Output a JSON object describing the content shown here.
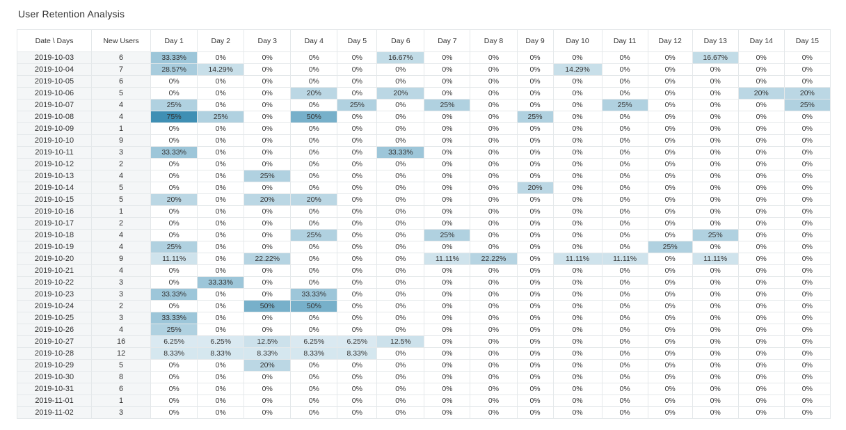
{
  "chart_data": {
    "type": "table",
    "title": "User Retention Analysis",
    "columns": [
      "Date \\ Days",
      "New Users",
      "Day 1",
      "Day 2",
      "Day 3",
      "Day 4",
      "Day 5",
      "Day 6",
      "Day 7",
      "Day 8",
      "Day 9",
      "Day 10",
      "Day 11",
      "Day 12",
      "Day 13",
      "Day 14",
      "Day 15"
    ],
    "rows": [
      {
        "date": "2019-10-03",
        "users": "6",
        "values": [
          "33.33%",
          "0%",
          "0%",
          "0%",
          "0%",
          "16.67%",
          "0%",
          "0%",
          "0%",
          "0%",
          "0%",
          "0%",
          "16.67%",
          "0%",
          "0%"
        ]
      },
      {
        "date": "2019-10-04",
        "users": "7",
        "values": [
          "28.57%",
          "14.29%",
          "0%",
          "0%",
          "0%",
          "0%",
          "0%",
          "0%",
          "0%",
          "14.29%",
          "0%",
          "0%",
          "0%",
          "0%",
          "0%"
        ]
      },
      {
        "date": "2019-10-05",
        "users": "6",
        "values": [
          "0%",
          "0%",
          "0%",
          "0%",
          "0%",
          "0%",
          "0%",
          "0%",
          "0%",
          "0%",
          "0%",
          "0%",
          "0%",
          "0%",
          "0%"
        ]
      },
      {
        "date": "2019-10-06",
        "users": "5",
        "values": [
          "0%",
          "0%",
          "0%",
          "20%",
          "0%",
          "20%",
          "0%",
          "0%",
          "0%",
          "0%",
          "0%",
          "0%",
          "0%",
          "20%",
          "20%"
        ]
      },
      {
        "date": "2019-10-07",
        "users": "4",
        "values": [
          "25%",
          "0%",
          "0%",
          "0%",
          "25%",
          "0%",
          "25%",
          "0%",
          "0%",
          "0%",
          "25%",
          "0%",
          "0%",
          "0%",
          "25%"
        ]
      },
      {
        "date": "2019-10-08",
        "users": "4",
        "values": [
          "75%",
          "25%",
          "0%",
          "50%",
          "0%",
          "0%",
          "0%",
          "0%",
          "25%",
          "0%",
          "0%",
          "0%",
          "0%",
          "0%",
          "0%"
        ]
      },
      {
        "date": "2019-10-09",
        "users": "1",
        "values": [
          "0%",
          "0%",
          "0%",
          "0%",
          "0%",
          "0%",
          "0%",
          "0%",
          "0%",
          "0%",
          "0%",
          "0%",
          "0%",
          "0%",
          "0%"
        ]
      },
      {
        "date": "2019-10-10",
        "users": "9",
        "values": [
          "0%",
          "0%",
          "0%",
          "0%",
          "0%",
          "0%",
          "0%",
          "0%",
          "0%",
          "0%",
          "0%",
          "0%",
          "0%",
          "0%",
          "0%"
        ]
      },
      {
        "date": "2019-10-11",
        "users": "3",
        "values": [
          "33.33%",
          "0%",
          "0%",
          "0%",
          "0%",
          "33.33%",
          "0%",
          "0%",
          "0%",
          "0%",
          "0%",
          "0%",
          "0%",
          "0%",
          "0%"
        ]
      },
      {
        "date": "2019-10-12",
        "users": "2",
        "values": [
          "0%",
          "0%",
          "0%",
          "0%",
          "0%",
          "0%",
          "0%",
          "0%",
          "0%",
          "0%",
          "0%",
          "0%",
          "0%",
          "0%",
          "0%"
        ]
      },
      {
        "date": "2019-10-13",
        "users": "4",
        "values": [
          "0%",
          "0%",
          "25%",
          "0%",
          "0%",
          "0%",
          "0%",
          "0%",
          "0%",
          "0%",
          "0%",
          "0%",
          "0%",
          "0%",
          "0%"
        ]
      },
      {
        "date": "2019-10-14",
        "users": "5",
        "values": [
          "0%",
          "0%",
          "0%",
          "0%",
          "0%",
          "0%",
          "0%",
          "0%",
          "20%",
          "0%",
          "0%",
          "0%",
          "0%",
          "0%",
          "0%"
        ]
      },
      {
        "date": "2019-10-15",
        "users": "5",
        "values": [
          "20%",
          "0%",
          "20%",
          "20%",
          "0%",
          "0%",
          "0%",
          "0%",
          "0%",
          "0%",
          "0%",
          "0%",
          "0%",
          "0%",
          "0%"
        ]
      },
      {
        "date": "2019-10-16",
        "users": "1",
        "values": [
          "0%",
          "0%",
          "0%",
          "0%",
          "0%",
          "0%",
          "0%",
          "0%",
          "0%",
          "0%",
          "0%",
          "0%",
          "0%",
          "0%",
          "0%"
        ]
      },
      {
        "date": "2019-10-17",
        "users": "2",
        "values": [
          "0%",
          "0%",
          "0%",
          "0%",
          "0%",
          "0%",
          "0%",
          "0%",
          "0%",
          "0%",
          "0%",
          "0%",
          "0%",
          "0%",
          "0%"
        ]
      },
      {
        "date": "2019-10-18",
        "users": "4",
        "values": [
          "0%",
          "0%",
          "0%",
          "25%",
          "0%",
          "0%",
          "25%",
          "0%",
          "0%",
          "0%",
          "0%",
          "0%",
          "25%",
          "0%",
          "0%"
        ]
      },
      {
        "date": "2019-10-19",
        "users": "4",
        "values": [
          "25%",
          "0%",
          "0%",
          "0%",
          "0%",
          "0%",
          "0%",
          "0%",
          "0%",
          "0%",
          "0%",
          "25%",
          "0%",
          "0%",
          "0%"
        ]
      },
      {
        "date": "2019-10-20",
        "users": "9",
        "values": [
          "11.11%",
          "0%",
          "22.22%",
          "0%",
          "0%",
          "0%",
          "11.11%",
          "22.22%",
          "0%",
          "11.11%",
          "11.11%",
          "0%",
          "11.11%",
          "0%",
          "0%"
        ]
      },
      {
        "date": "2019-10-21",
        "users": "4",
        "values": [
          "0%",
          "0%",
          "0%",
          "0%",
          "0%",
          "0%",
          "0%",
          "0%",
          "0%",
          "0%",
          "0%",
          "0%",
          "0%",
          "0%",
          "0%"
        ]
      },
      {
        "date": "2019-10-22",
        "users": "3",
        "values": [
          "0%",
          "33.33%",
          "0%",
          "0%",
          "0%",
          "0%",
          "0%",
          "0%",
          "0%",
          "0%",
          "0%",
          "0%",
          "0%",
          "0%",
          "0%"
        ]
      },
      {
        "date": "2019-10-23",
        "users": "3",
        "values": [
          "33.33%",
          "0%",
          "0%",
          "33.33%",
          "0%",
          "0%",
          "0%",
          "0%",
          "0%",
          "0%",
          "0%",
          "0%",
          "0%",
          "0%",
          "0%"
        ]
      },
      {
        "date": "2019-10-24",
        "users": "2",
        "values": [
          "0%",
          "0%",
          "50%",
          "50%",
          "0%",
          "0%",
          "0%",
          "0%",
          "0%",
          "0%",
          "0%",
          "0%",
          "0%",
          "0%",
          "0%"
        ]
      },
      {
        "date": "2019-10-25",
        "users": "3",
        "values": [
          "33.33%",
          "0%",
          "0%",
          "0%",
          "0%",
          "0%",
          "0%",
          "0%",
          "0%",
          "0%",
          "0%",
          "0%",
          "0%",
          "0%",
          "0%"
        ]
      },
      {
        "date": "2019-10-26",
        "users": "4",
        "values": [
          "25%",
          "0%",
          "0%",
          "0%",
          "0%",
          "0%",
          "0%",
          "0%",
          "0%",
          "0%",
          "0%",
          "0%",
          "0%",
          "0%",
          "0%"
        ]
      },
      {
        "date": "2019-10-27",
        "users": "16",
        "values": [
          "6.25%",
          "6.25%",
          "12.5%",
          "6.25%",
          "6.25%",
          "12.5%",
          "0%",
          "0%",
          "0%",
          "0%",
          "0%",
          "0%",
          "0%",
          "0%",
          "0%"
        ]
      },
      {
        "date": "2019-10-28",
        "users": "12",
        "values": [
          "8.33%",
          "8.33%",
          "8.33%",
          "8.33%",
          "8.33%",
          "0%",
          "0%",
          "0%",
          "0%",
          "0%",
          "0%",
          "0%",
          "0%",
          "0%",
          "0%"
        ]
      },
      {
        "date": "2019-10-29",
        "users": "5",
        "values": [
          "0%",
          "0%",
          "20%",
          "0%",
          "0%",
          "0%",
          "0%",
          "0%",
          "0%",
          "0%",
          "0%",
          "0%",
          "0%",
          "0%",
          "0%"
        ]
      },
      {
        "date": "2019-10-30",
        "users": "8",
        "values": [
          "0%",
          "0%",
          "0%",
          "0%",
          "0%",
          "0%",
          "0%",
          "0%",
          "0%",
          "0%",
          "0%",
          "0%",
          "0%",
          "0%",
          "0%"
        ]
      },
      {
        "date": "2019-10-31",
        "users": "6",
        "values": [
          "0%",
          "0%",
          "0%",
          "0%",
          "0%",
          "0%",
          "0%",
          "0%",
          "0%",
          "0%",
          "0%",
          "0%",
          "0%",
          "0%",
          "0%"
        ]
      },
      {
        "date": "2019-11-01",
        "users": "1",
        "values": [
          "0%",
          "0%",
          "0%",
          "0%",
          "0%",
          "0%",
          "0%",
          "0%",
          "0%",
          "0%",
          "0%",
          "0%",
          "0%",
          "0%",
          "0%"
        ]
      },
      {
        "date": "2019-11-02",
        "users": "3",
        "values": [
          "0%",
          "0%",
          "0%",
          "0%",
          "0%",
          "0%",
          "0%",
          "0%",
          "0%",
          "0%",
          "0%",
          "0%",
          "0%",
          "0%",
          "0%"
        ]
      }
    ],
    "color_scale": {
      "low": "#ffffff",
      "high": "#3f8fb4",
      "max_value": 75
    }
  }
}
